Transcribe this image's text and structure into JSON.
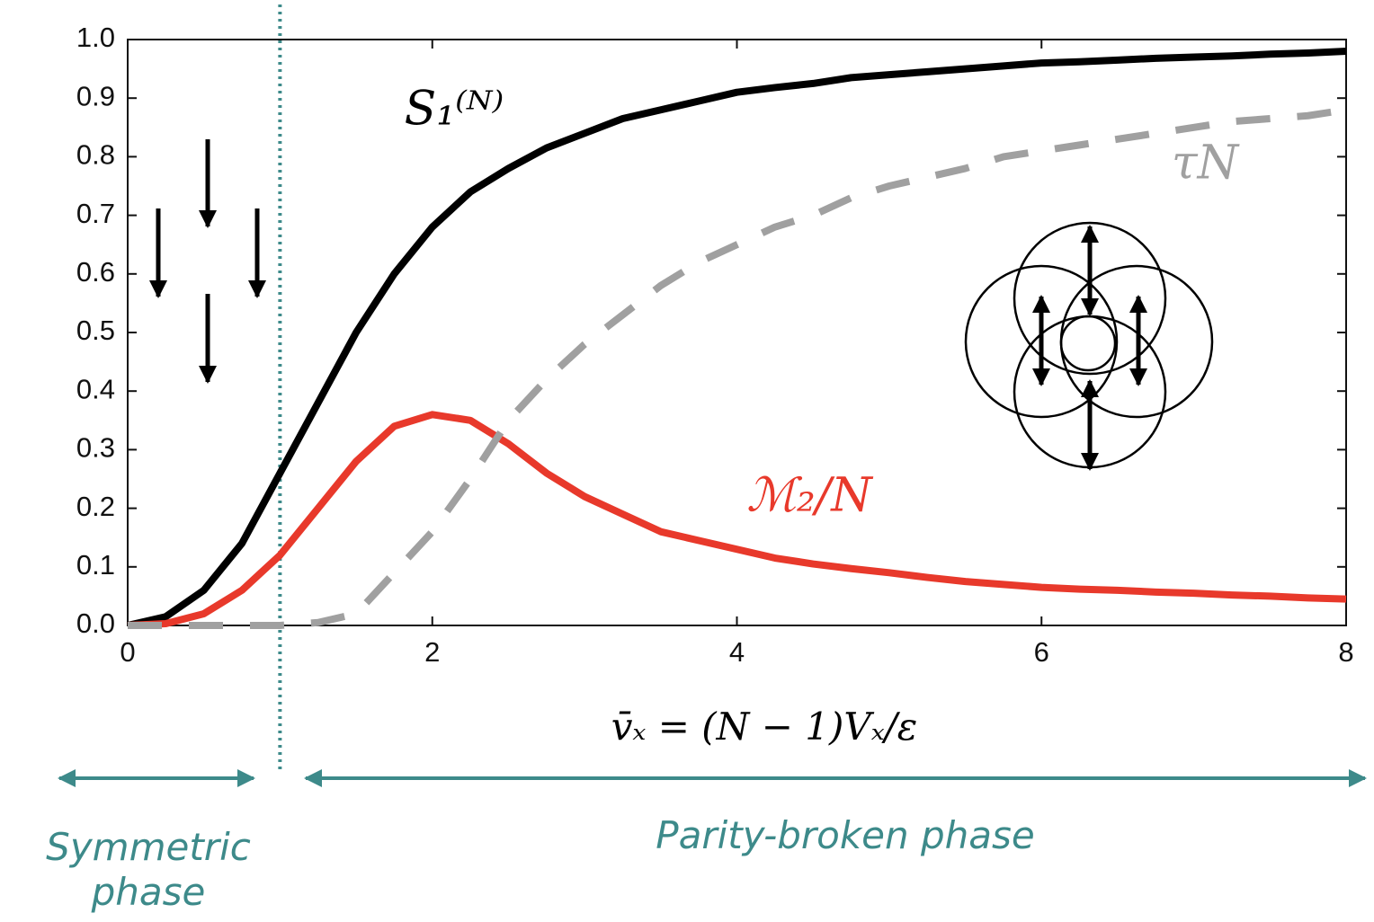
{
  "chart_data": {
    "type": "line",
    "x_label": "v̄ₓ = (N − 1)Vₓ/ε",
    "x": [
      0,
      0.25,
      0.5,
      0.75,
      1,
      1.25,
      1.5,
      1.75,
      2,
      2.25,
      2.5,
      2.75,
      3,
      3.25,
      3.5,
      3.75,
      4,
      4.25,
      4.5,
      4.75,
      5,
      5.25,
      5.5,
      5.75,
      6,
      6.25,
      6.5,
      6.75,
      7,
      7.25,
      7.5,
      7.75,
      8
    ],
    "series": [
      {
        "name": "S₁⁽ᴺ⁾",
        "color": "#000000",
        "dash": false,
        "values": [
          0,
          0.015,
          0.06,
          0.14,
          0.26,
          0.38,
          0.5,
          0.6,
          0.68,
          0.74,
          0.78,
          0.815,
          0.84,
          0.865,
          0.88,
          0.895,
          0.91,
          0.918,
          0.925,
          0.935,
          0.94,
          0.945,
          0.95,
          0.955,
          0.96,
          0.962,
          0.965,
          0.968,
          0.97,
          0.972,
          0.975,
          0.977,
          0.98
        ]
      },
      {
        "name": "ℳ₂/N",
        "color": "#e8392b",
        "dash": false,
        "values": [
          0,
          0.003,
          0.02,
          0.06,
          0.12,
          0.2,
          0.28,
          0.34,
          0.36,
          0.35,
          0.31,
          0.26,
          0.22,
          0.19,
          0.16,
          0.145,
          0.13,
          0.115,
          0.105,
          0.097,
          0.09,
          0.082,
          0.075,
          0.07,
          0.065,
          0.062,
          0.06,
          0.057,
          0.055,
          0.052,
          0.05,
          0.047,
          0.045
        ]
      },
      {
        "name": "τN",
        "color": "#a0a0a0",
        "dash": true,
        "values": [
          0,
          0,
          0,
          0,
          0,
          0.005,
          0.02,
          0.09,
          0.16,
          0.25,
          0.35,
          0.42,
          0.48,
          0.53,
          0.58,
          0.62,
          0.65,
          0.68,
          0.7,
          0.73,
          0.75,
          0.765,
          0.78,
          0.8,
          0.81,
          0.82,
          0.83,
          0.84,
          0.85,
          0.86,
          0.865,
          0.87,
          0.88
        ]
      }
    ],
    "xlim": [
      0,
      8
    ],
    "xticks": [
      0,
      2,
      4,
      6,
      8
    ],
    "ylim": [
      0,
      1
    ],
    "yticks": [
      {
        "value": 0,
        "label": "0.0"
      },
      {
        "value": 0.1,
        "label": "0.1"
      },
      {
        "value": 0.2,
        "label": "0.2"
      },
      {
        "value": 0.3,
        "label": "0.3"
      },
      {
        "value": 0.4,
        "label": "0.4"
      },
      {
        "value": 0.5,
        "label": "0.5"
      },
      {
        "value": 0.6,
        "label": "0.6"
      },
      {
        "value": 0.7,
        "label": "0.7"
      },
      {
        "value": 0.8,
        "label": "0.8"
      },
      {
        "value": 0.9,
        "label": "0.9"
      },
      {
        "value": 1,
        "label": "1.0"
      }
    ],
    "vline_x": 1,
    "annotations": [
      "Symmetric phase",
      "Parity-broken phase"
    ]
  }
}
